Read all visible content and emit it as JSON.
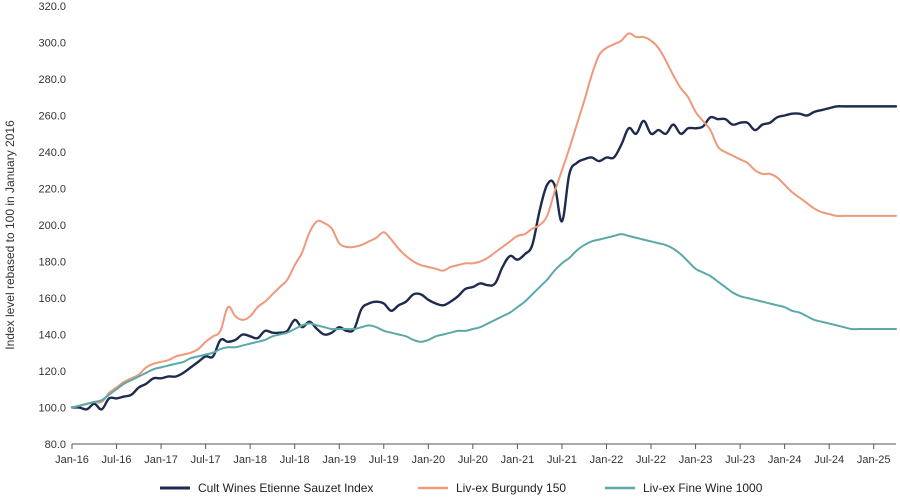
{
  "chart_data": {
    "type": "line",
    "title": "",
    "xlabel": "",
    "ylabel": "Index level rebased to 100 in January 2016",
    "ylim": [
      80,
      320
    ],
    "yticks": [
      "80.0",
      "100.0",
      "120.0",
      "140.0",
      "160.0",
      "180.0",
      "200.0",
      "220.0",
      "240.0",
      "260.0",
      "280.0",
      "300.0",
      "320.0"
    ],
    "xticks": [
      "Jan-16",
      "Jul-16",
      "Jan-17",
      "Jul-17",
      "Jan-18",
      "Jul-18",
      "Jan-19",
      "Jul-19",
      "Jan-20",
      "Jul-20",
      "Jan-21",
      "Jul-21",
      "Jan-22",
      "Jul-22",
      "Jan-23",
      "Jul-23",
      "Jan-24",
      "Jul-24",
      "Jan-25"
    ],
    "grid": false,
    "legend": "bottom",
    "series": [
      {
        "name": "Cult Wines Etienne Sauzet Index",
        "color": "#1f2a4f",
        "x": [
          0,
          1,
          2,
          3,
          4,
          5,
          6,
          7,
          8,
          9,
          10,
          11,
          12,
          13,
          14,
          15,
          16,
          17,
          18,
          19,
          20,
          21,
          22,
          23,
          24,
          25,
          26,
          27,
          28,
          29,
          30,
          31,
          32,
          33,
          34,
          35,
          36,
          37,
          38,
          39,
          40,
          41,
          42,
          43,
          44,
          45,
          46,
          47,
          48,
          49,
          50,
          51,
          52,
          53,
          54,
          55,
          56,
          57,
          58,
          59,
          60,
          61,
          62,
          63,
          64,
          65,
          66,
          67,
          68,
          69,
          70,
          71,
          72,
          73,
          74,
          75,
          76,
          77,
          78,
          79,
          80,
          81,
          82,
          83,
          84,
          85,
          86,
          87,
          88,
          89,
          90,
          91,
          92,
          93,
          94,
          95,
          96,
          97,
          98,
          99,
          100,
          101,
          102,
          103,
          104,
          105,
          106,
          107,
          108,
          109,
          110,
          111
        ],
        "values": [
          100,
          100,
          99,
          102,
          99,
          105,
          105,
          106,
          107,
          111,
          113,
          116,
          116,
          117,
          117,
          119,
          122,
          125,
          128,
          128,
          137,
          136,
          137,
          140,
          139,
          138,
          142,
          141,
          141,
          142,
          148,
          144,
          147,
          143,
          140,
          141,
          144,
          142,
          143,
          154,
          157,
          158,
          157,
          153,
          156,
          158,
          162,
          162,
          159,
          157,
          156,
          158,
          161,
          165,
          166,
          168,
          167,
          168,
          177,
          183,
          181,
          184,
          189,
          208,
          222,
          222,
          202,
          228,
          234,
          236,
          237,
          235,
          237,
          237,
          244,
          253,
          250,
          257,
          250,
          252,
          250,
          255,
          250,
          253,
          253,
          254,
          259,
          258,
          258,
          255,
          256,
          256,
          252,
          255,
          256,
          259,
          260,
          261,
          261,
          260,
          262,
          263,
          264,
          265,
          265,
          265,
          265,
          265,
          265,
          265,
          265,
          265
        ]
      },
      {
        "name": "Liv-ex Burgundy 150",
        "color": "#f0987a",
        "x": [
          0,
          1,
          2,
          3,
          4,
          5,
          6,
          7,
          8,
          9,
          10,
          11,
          12,
          13,
          14,
          15,
          16,
          17,
          18,
          19,
          20,
          21,
          22,
          23,
          24,
          25,
          26,
          27,
          28,
          29,
          30,
          31,
          32,
          33,
          34,
          35,
          36,
          37,
          38,
          39,
          40,
          41,
          42,
          43,
          44,
          45,
          46,
          47,
          48,
          49,
          50,
          51,
          52,
          53,
          54,
          55,
          56,
          57,
          58,
          59,
          60,
          61,
          62,
          63,
          64,
          65,
          66,
          67,
          68,
          69,
          70,
          71,
          72,
          73,
          74,
          75,
          76,
          77,
          78,
          79,
          80,
          81,
          82,
          83,
          84,
          85,
          86,
          87,
          88,
          89,
          90,
          91,
          92,
          93,
          94,
          95,
          96,
          97,
          98,
          99,
          100,
          101,
          102,
          103,
          104,
          105,
          106,
          107,
          108,
          109,
          110,
          111
        ],
        "values": [
          100,
          101,
          102,
          103,
          103,
          108,
          111,
          114,
          116,
          118,
          122,
          124,
          125,
          126,
          128,
          129,
          130,
          132,
          136,
          139,
          142,
          155,
          150,
          148,
          150,
          155,
          158,
          162,
          166,
          170,
          178,
          185,
          196,
          202,
          201,
          198,
          190,
          188,
          188,
          189,
          191,
          193,
          196,
          192,
          187,
          183,
          180,
          178,
          177,
          176,
          175,
          177,
          178,
          179,
          179,
          180,
          182,
          185,
          188,
          191,
          194,
          195,
          198,
          200,
          205,
          218,
          230,
          242,
          255,
          268,
          282,
          293,
          297,
          299,
          301,
          305,
          303,
          303,
          301,
          297,
          290,
          282,
          275,
          270,
          262,
          257,
          252,
          243,
          240,
          238,
          236,
          234,
          230,
          228,
          228,
          226,
          222,
          218,
          215,
          212,
          209,
          207,
          206,
          205,
          205,
          205,
          205,
          205,
          205,
          205,
          205,
          205
        ]
      },
      {
        "name": "Liv-ex Fine Wine 1000",
        "color": "#5aa8a8",
        "x": [
          0,
          1,
          2,
          3,
          4,
          5,
          6,
          7,
          8,
          9,
          10,
          11,
          12,
          13,
          14,
          15,
          16,
          17,
          18,
          19,
          20,
          21,
          22,
          23,
          24,
          25,
          26,
          27,
          28,
          29,
          30,
          31,
          32,
          33,
          34,
          35,
          36,
          37,
          38,
          39,
          40,
          41,
          42,
          43,
          44,
          45,
          46,
          47,
          48,
          49,
          50,
          51,
          52,
          53,
          54,
          55,
          56,
          57,
          58,
          59,
          60,
          61,
          62,
          63,
          64,
          65,
          66,
          67,
          68,
          69,
          70,
          71,
          72,
          73,
          74,
          75,
          76,
          77,
          78,
          79,
          80,
          81,
          82,
          83,
          84,
          85,
          86,
          87,
          88,
          89,
          90,
          91,
          92,
          93,
          94,
          95,
          96,
          97,
          98,
          99,
          100,
          101,
          102,
          103,
          104,
          105,
          106,
          107,
          108,
          109,
          110,
          111
        ],
        "values": [
          100,
          101,
          102,
          103,
          104,
          107,
          110,
          113,
          115,
          117,
          119,
          121,
          122,
          123,
          124,
          125,
          127,
          128,
          129,
          130,
          132,
          133,
          133,
          134,
          135,
          136,
          137,
          139,
          140,
          141,
          143,
          145,
          146,
          145,
          144,
          143,
          143,
          143,
          143,
          144,
          145,
          144,
          142,
          141,
          140,
          139,
          137,
          136,
          137,
          139,
          140,
          141,
          142,
          142,
          143,
          144,
          146,
          148,
          150,
          152,
          155,
          158,
          162,
          166,
          170,
          175,
          179,
          182,
          186,
          189,
          191,
          192,
          193,
          194,
          195,
          194,
          193,
          192,
          191,
          190,
          189,
          187,
          184,
          180,
          176,
          174,
          172,
          169,
          166,
          163,
          161,
          160,
          159,
          158,
          157,
          156,
          155,
          153,
          152,
          150,
          148,
          147,
          146,
          145,
          144,
          143,
          143,
          143,
          143,
          143,
          143,
          143
        ]
      }
    ]
  }
}
